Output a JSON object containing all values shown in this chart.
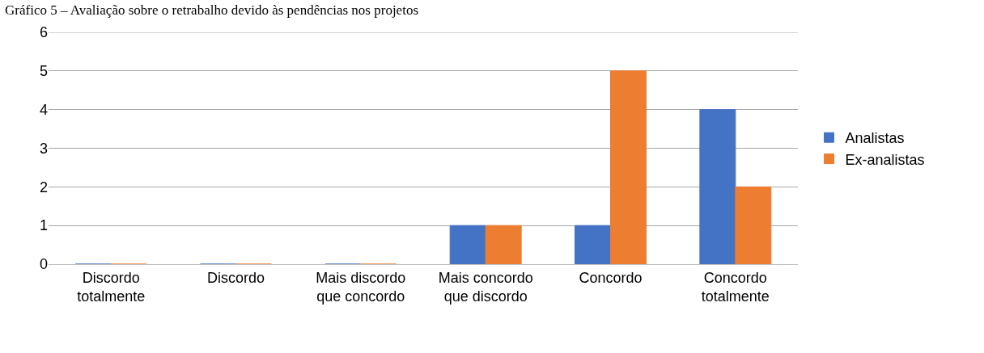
{
  "chart_data": {
    "type": "bar",
    "title": "Gráfico 5 – Avaliação sobre o retrabalho devido às pendências nos projetos",
    "categories": [
      "Discordo totalmente",
      "Discordo",
      "Mais discordo que concordo",
      "Mais concordo que discordo",
      "Concordo",
      "Concordo totalmente"
    ],
    "series": [
      {
        "name": "Analistas",
        "color": "#4472c4",
        "values": [
          0,
          0,
          0,
          1,
          1,
          4
        ]
      },
      {
        "name": "Ex-analistas",
        "color": "#ed7d31",
        "values": [
          0,
          0,
          0,
          1,
          5,
          2
        ]
      }
    ],
    "ylim": [
      0,
      6
    ],
    "yticks": [
      0,
      1,
      2,
      3,
      4,
      5,
      6
    ],
    "grid": "y",
    "legend": "right"
  }
}
